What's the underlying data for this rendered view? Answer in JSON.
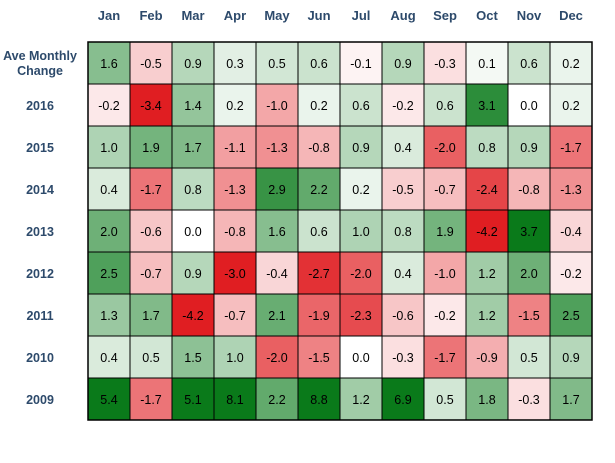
{
  "chart_data": {
    "type": "heatmap",
    "columns": [
      "Jan",
      "Feb",
      "Mar",
      "Apr",
      "May",
      "Jun",
      "Jul",
      "Aug",
      "Sep",
      "Oct",
      "Nov",
      "Dec"
    ],
    "rows": [
      "Ave Monthly Change",
      "2016",
      "2015",
      "2014",
      "2013",
      "2012",
      "2011",
      "2010",
      "2009"
    ],
    "values": [
      [
        1.6,
        -0.5,
        0.9,
        0.3,
        0.5,
        0.6,
        -0.1,
        0.9,
        -0.3,
        0.1,
        0.6,
        0.2
      ],
      [
        -0.2,
        -3.4,
        1.4,
        0.2,
        -1.0,
        0.2,
        0.6,
        -0.2,
        0.6,
        3.1,
        0.0,
        0.2
      ],
      [
        1.0,
        1.9,
        1.7,
        -1.1,
        -1.3,
        -0.8,
        0.9,
        0.4,
        -2.0,
        0.8,
        0.9,
        -1.7
      ],
      [
        0.4,
        -1.7,
        0.8,
        -1.3,
        2.9,
        2.2,
        0.2,
        -0.5,
        -0.7,
        -2.4,
        -0.8,
        -1.3
      ],
      [
        2.0,
        -0.6,
        0.0,
        -0.8,
        1.6,
        0.6,
        1.0,
        0.8,
        1.9,
        -4.2,
        3.7,
        -0.4
      ],
      [
        2.5,
        -0.7,
        0.9,
        -3.0,
        -0.4,
        -2.7,
        -2.0,
        0.4,
        -1.0,
        1.2,
        2.0,
        -0.2
      ],
      [
        1.3,
        1.7,
        -4.2,
        -0.7,
        2.1,
        -1.9,
        -2.3,
        -0.6,
        -0.2,
        1.2,
        -1.5,
        2.5
      ],
      [
        0.4,
        0.5,
        1.5,
        1.0,
        -2.0,
        -1.5,
        0.0,
        -0.3,
        -1.7,
        -0.9,
        0.5,
        0.9
      ],
      [
        5.4,
        -1.7,
        5.1,
        8.1,
        2.2,
        8.8,
        1.2,
        6.9,
        0.5,
        1.8,
        -0.3,
        1.7
      ]
    ],
    "value_format": "0.0",
    "color_scale": {
      "negative": "#e01e22",
      "zero": "#ffffff",
      "positive": "#0a7a1a"
    },
    "colors": {
      "header_text": "#2d4a6b",
      "cell_border": "#000000",
      "light_text": "#000000",
      "dark_text": "#000000"
    }
  }
}
